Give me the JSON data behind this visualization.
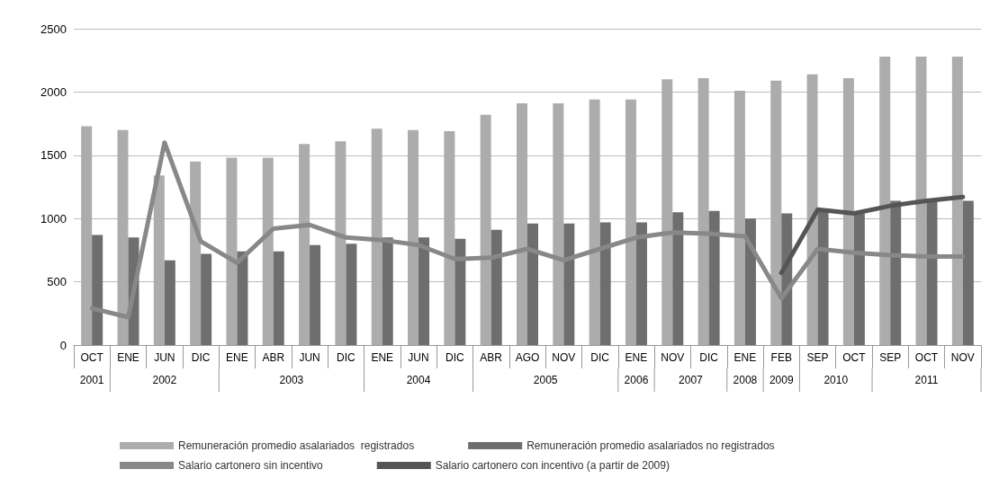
{
  "chart_data": {
    "type": "bar",
    "categories": [
      "OCT",
      "ENE",
      "JUN",
      "DIC",
      "ENE",
      "ABR",
      "JUN",
      "DIC",
      "ENE",
      "JUN",
      "DIC",
      "ABR",
      "AGO",
      "NOV",
      "DIC",
      "ENE",
      "NOV",
      "DIC",
      "ENE",
      "FEB",
      "SEP",
      "OCT",
      "SEP",
      "OCT",
      "NOV"
    ],
    "series": [
      {
        "name": "Remuneración promedio asalariados  registrados",
        "color": "#acacac",
        "values": [
          1730,
          1700,
          1340,
          1450,
          1480,
          1480,
          1590,
          1610,
          1710,
          1700,
          1690,
          1820,
          1910,
          1910,
          1940,
          1940,
          2100,
          2110,
          2010,
          2090,
          2140,
          2110,
          2280,
          2280,
          2280
        ]
      },
      {
        "name": "Remuneración promedio asalariados no registrados",
        "color": "#6e6e6e",
        "values": [
          870,
          850,
          670,
          720,
          740,
          740,
          790,
          800,
          850,
          850,
          840,
          910,
          960,
          960,
          970,
          970,
          1050,
          1060,
          1000,
          1040,
          1060,
          1040,
          1140,
          1140,
          1140
        ]
      },
      {
        "name": "Salario cartonero sin incentivo",
        "type": "line",
        "color": "#888888",
        "values": [
          290,
          220,
          1600,
          820,
          650,
          920,
          950,
          850,
          830,
          790,
          680,
          690,
          760,
          670,
          760,
          850,
          890,
          880,
          860,
          370,
          760,
          730,
          710,
          700,
          700
        ]
      },
      {
        "name": "Salario cartonero con incentivo (a partir de 2009)",
        "type": "line",
        "color": "#555555",
        "values": [
          null,
          null,
          null,
          null,
          null,
          null,
          null,
          null,
          null,
          null,
          null,
          null,
          null,
          null,
          null,
          null,
          null,
          null,
          null,
          570,
          1070,
          1040,
          1100,
          1140,
          1170
        ]
      }
    ],
    "annotations": [
      "2001",
      "2002",
      "2003",
      "2004",
      "2005",
      "2006",
      "2007",
      "2008",
      "2009",
      "2010",
      "2011"
    ],
    "ylim": [
      0,
      2500
    ],
    "yticks": [
      0,
      500,
      1000,
      1500,
      2000,
      2500
    ],
    "grid": "y",
    "legend": "bottom",
    "marker": "none",
    "line_style": "solid"
  }
}
